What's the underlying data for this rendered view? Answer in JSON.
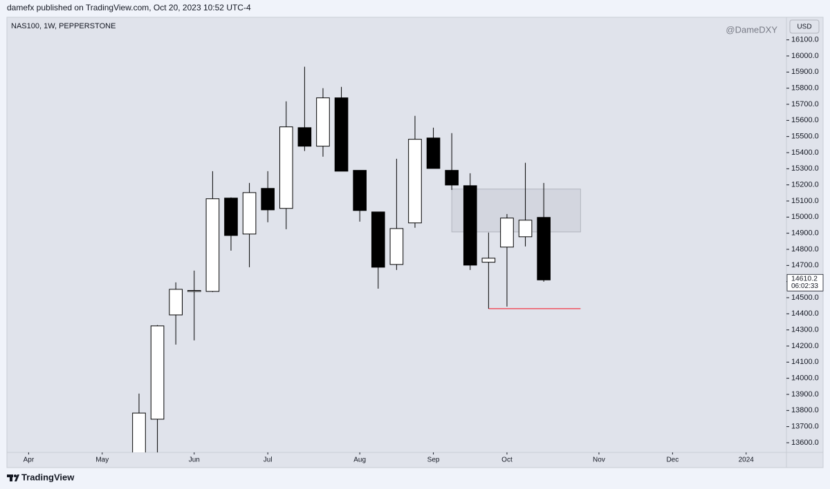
{
  "header": {
    "text": "damefx published on TradingView.com, Oct 20, 2023 10:52 UTC-4"
  },
  "footer": {
    "brand": "TradingView"
  },
  "chart_data": {
    "type": "candlestick",
    "title": "NAS100, 1W, PEPPERSTONE",
    "watermark": "@DameDXY",
    "currency": "USD",
    "x": [
      0,
      1,
      2,
      3,
      4,
      5,
      6,
      7,
      8,
      9,
      10,
      11,
      12,
      13,
      14,
      15,
      16,
      17,
      18,
      19,
      20,
      21,
      22
    ],
    "open": [
      13480,
      13746,
      14393,
      14540,
      14539,
      15118,
      14895,
      15178,
      15054,
      15555,
      15440,
      15740,
      15290,
      15032,
      14706,
      14964,
      15491,
      15290,
      15195,
      14720,
      14814,
      14878,
      14998
    ],
    "high": [
      13905,
      14330,
      14595,
      14668,
      15285,
      15122,
      15212,
      15285,
      15718,
      15933,
      15800,
      15808,
      15290,
      15032,
      15362,
      15628,
      15555,
      15521,
      15272,
      14904,
      15019,
      15337,
      15212
    ],
    "low": [
      13420,
      13500,
      14209,
      14235,
      14535,
      14792,
      14689,
      14968,
      14925,
      15410,
      15375,
      15285,
      14972,
      14556,
      14672,
      14934,
      15302,
      15169,
      14672,
      14432,
      14445,
      14818,
      14599
    ],
    "close": [
      13784,
      14325,
      14552,
      14545,
      15114,
      14886,
      15152,
      15045,
      15560,
      15440,
      15740,
      15285,
      15041,
      14689,
      14929,
      15483,
      15302,
      15199,
      14702,
      14745,
      14994,
      14981,
      14610.2
    ],
    "up_color": "#ffffff",
    "down_color": "#000000",
    "outline_color": "#000000",
    "last_price": 14610.2,
    "countdown": "06:02:33",
    "zone": {
      "x": [
        17,
        24
      ],
      "y": [
        14908,
        15174
      ],
      "color": "#c8ccd6"
    },
    "support_line": {
      "x": [
        19,
        24
      ],
      "y": 14432,
      "color": "#f23645"
    },
    "xlim": [
      -7.18,
      35.19
    ],
    "xticks": [
      {
        "value": -6,
        "label": "Apr"
      },
      {
        "value": -2,
        "label": "May"
      },
      {
        "value": 3,
        "label": "Jun"
      },
      {
        "value": 7,
        "label": "Jul"
      },
      {
        "value": 12,
        "label": "Aug"
      },
      {
        "value": 16,
        "label": "Sep"
      },
      {
        "value": 20,
        "label": "Oct"
      },
      {
        "value": 25,
        "label": "Nov"
      },
      {
        "value": 29,
        "label": "Dec"
      },
      {
        "value": 33,
        "label": "2024"
      }
    ],
    "ylim": [
      13540,
      16240
    ],
    "yticks": [
      {
        "value": 13600,
        "label": "13600.0"
      },
      {
        "value": 13700,
        "label": "13700.0"
      },
      {
        "value": 13800,
        "label": "13800.0"
      },
      {
        "value": 13900,
        "label": "13900.0"
      },
      {
        "value": 14000,
        "label": "14000.0"
      },
      {
        "value": 14100,
        "label": "14100.0"
      },
      {
        "value": 14200,
        "label": "14200.0"
      },
      {
        "value": 14300,
        "label": "14300.0"
      },
      {
        "value": 14400,
        "label": "14400.0"
      },
      {
        "value": 14500,
        "label": "14500.0"
      },
      {
        "value": 14600,
        "label": "14600.0"
      },
      {
        "value": 14700,
        "label": "14700.0"
      },
      {
        "value": 14800,
        "label": "14800.0"
      },
      {
        "value": 14900,
        "label": "14900.0"
      },
      {
        "value": 15000,
        "label": "15000.0"
      },
      {
        "value": 15100,
        "label": "15100.0"
      },
      {
        "value": 15200,
        "label": "15200.0"
      },
      {
        "value": 15300,
        "label": "15300.0"
      },
      {
        "value": 15400,
        "label": "15400.0"
      },
      {
        "value": 15500,
        "label": "15500.0"
      },
      {
        "value": 15600,
        "label": "15600.0"
      },
      {
        "value": 15700,
        "label": "15700.0"
      },
      {
        "value": 15800,
        "label": "15800.0"
      },
      {
        "value": 15900,
        "label": "15900.0"
      },
      {
        "value": 16000,
        "label": "16000.0"
      },
      {
        "value": 16100,
        "label": "16100.0"
      }
    ],
    "grid": false
  }
}
